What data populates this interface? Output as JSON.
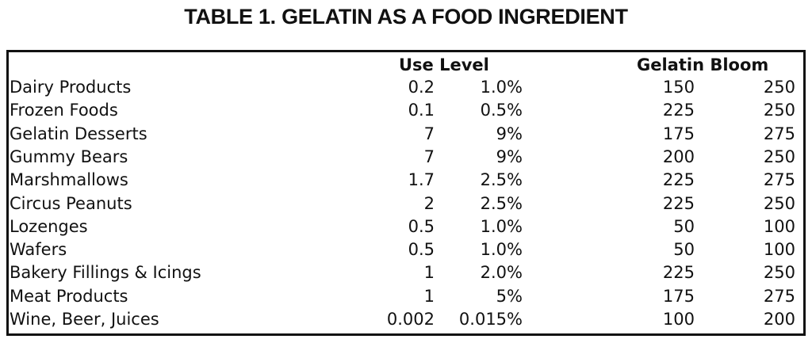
{
  "title": "TABLE 1. GELATIN AS A FOOD INGREDIENT",
  "headers": {
    "use_level": "Use Level",
    "gelatin_bloom": "Gelatin Bloom"
  },
  "rows": [
    {
      "name": "Dairy Products",
      "use_min": "0.2",
      "use_max": "1.0%",
      "bloom_min": "150",
      "bloom_max": "250"
    },
    {
      "name": "Frozen Foods",
      "use_min": "0.1",
      "use_max": "0.5%",
      "bloom_min": "225",
      "bloom_max": "250"
    },
    {
      "name": "Gelatin Desserts",
      "use_min": "7",
      "use_max": "9%",
      "bloom_min": "175",
      "bloom_max": "275"
    },
    {
      "name": "Gummy Bears",
      "use_min": "7",
      "use_max": "9%",
      "bloom_min": "200",
      "bloom_max": "250"
    },
    {
      "name": "Marshmallows",
      "use_min": "1.7",
      "use_max": "2.5%",
      "bloom_min": "225",
      "bloom_max": "275"
    },
    {
      "name": "Circus Peanuts",
      "use_min": "2",
      "use_max": "2.5%",
      "bloom_min": "225",
      "bloom_max": "250"
    },
    {
      "name": "Lozenges",
      "use_min": "0.5",
      "use_max": "1.0%",
      "bloom_min": "50",
      "bloom_max": "100"
    },
    {
      "name": "Wafers",
      "use_min": "0.5",
      "use_max": "1.0%",
      "bloom_min": "50",
      "bloom_max": "100"
    },
    {
      "name": "Bakery Fillings & Icings",
      "use_min": "1",
      "use_max": "2.0%",
      "bloom_min": "225",
      "bloom_max": "250"
    },
    {
      "name": "Meat Products",
      "use_min": "1",
      "use_max": "5%",
      "bloom_min": "175",
      "bloom_max": "275"
    },
    {
      "name": "Wine, Beer, Juices",
      "use_min": "0.002",
      "use_max": "0.015%",
      "bloom_min": "100",
      "bloom_max": "200"
    }
  ]
}
